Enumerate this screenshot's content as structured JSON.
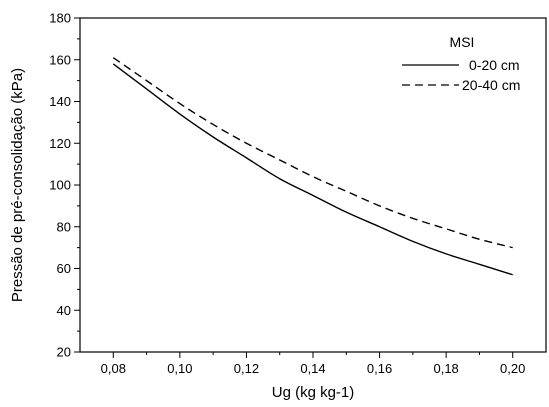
{
  "chart_data": {
    "type": "line",
    "xlabel": "Ug (kg kg-1)",
    "ylabel": "Pressão de pré-consolidação (kPa)",
    "xlim": [
      0.07,
      0.21
    ],
    "ylim": [
      20,
      180
    ],
    "xticks": [
      0.08,
      0.1,
      0.12,
      0.14,
      0.16,
      0.18,
      0.2
    ],
    "xtick_labels": [
      "0,08",
      "0,10",
      "0,12",
      "0,14",
      "0,16",
      "0,18",
      "0,20"
    ],
    "yticks": [
      20,
      40,
      60,
      80,
      100,
      120,
      140,
      160,
      180
    ],
    "grid": false,
    "legend": {
      "title": "MSI",
      "position": "top-right"
    },
    "series": [
      {
        "name": "0-20 cm",
        "style": "solid",
        "color": "#000000",
        "x": [
          0.08,
          0.09,
          0.1,
          0.11,
          0.12,
          0.13,
          0.14,
          0.15,
          0.16,
          0.17,
          0.18,
          0.19,
          0.2
        ],
        "y": [
          158,
          146,
          134,
          123,
          113,
          103,
          95,
          87,
          80,
          73,
          67,
          62,
          57
        ]
      },
      {
        "name": "20-40 cm",
        "style": "dashed",
        "color": "#000000",
        "x": [
          0.08,
          0.09,
          0.1,
          0.11,
          0.12,
          0.13,
          0.14,
          0.15,
          0.16,
          0.17,
          0.18,
          0.19,
          0.2
        ],
        "y": [
          161,
          150,
          139,
          129,
          120,
          112,
          104,
          97,
          90,
          84,
          79,
          74,
          70
        ]
      }
    ]
  }
}
